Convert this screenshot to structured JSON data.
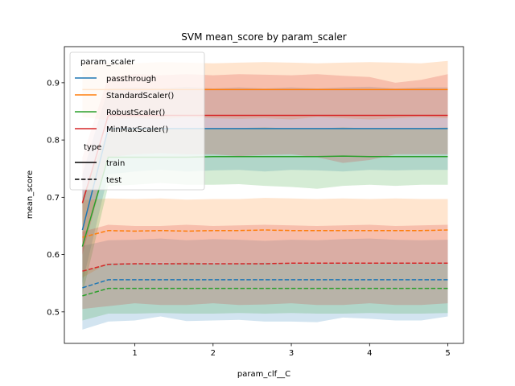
{
  "chart_data": {
    "type": "line",
    "title": "SVM mean_score by param_scaler",
    "xlabel": "param_clf__C",
    "ylabel": "mean_score",
    "xlim": [
      0.1,
      5.2
    ],
    "ylim": [
      0.445,
      0.963
    ],
    "xticks": [
      1,
      2,
      3,
      4,
      5
    ],
    "yticks": [
      0.5,
      0.6,
      0.7,
      0.8,
      0.9
    ],
    "ytick_labels": [
      "0.5",
      "0.6",
      "0.7",
      "0.8",
      "0.9"
    ],
    "xtick_labels": [
      "1",
      "2",
      "3",
      "4",
      "5"
    ],
    "x": [
      0.33,
      0.66,
      1.0,
      1.33,
      1.66,
      2.0,
      2.33,
      2.66,
      3.0,
      3.33,
      3.66,
      4.0,
      4.33,
      4.66,
      5.0
    ],
    "legend": {
      "position": "top-left",
      "hue_title": "param_scaler",
      "style_title": "type",
      "style_entries": [
        {
          "label": "train",
          "dash": "solid"
        },
        {
          "label": "test",
          "dash": "dashed"
        }
      ]
    },
    "series": [
      {
        "name": "passthrough",
        "color": "#1f77b4",
        "train": [
          0.643,
          0.82,
          0.82,
          0.82,
          0.82,
          0.82,
          0.82,
          0.82,
          0.82,
          0.82,
          0.82,
          0.82,
          0.82,
          0.82,
          0.82
        ],
        "train_lo": [
          0.55,
          0.74,
          0.745,
          0.748,
          0.745,
          0.747,
          0.748,
          0.745,
          0.748,
          0.747,
          0.745,
          0.748,
          0.747,
          0.748,
          0.748
        ],
        "train_hi": [
          0.74,
          0.89,
          0.892,
          0.89,
          0.893,
          0.89,
          0.892,
          0.89,
          0.892,
          0.89,
          0.892,
          0.893,
          0.89,
          0.892,
          0.892
        ],
        "test": [
          0.542,
          0.556,
          0.556,
          0.556,
          0.556,
          0.556,
          0.556,
          0.556,
          0.556,
          0.556,
          0.556,
          0.556,
          0.556,
          0.556,
          0.556
        ],
        "test_lo": [
          0.469,
          0.483,
          0.485,
          0.492,
          0.484,
          0.485,
          0.486,
          0.483,
          0.483,
          0.482,
          0.49,
          0.488,
          0.485,
          0.485,
          0.492
        ],
        "test_hi": [
          0.615,
          0.625,
          0.626,
          0.628,
          0.625,
          0.627,
          0.626,
          0.624,
          0.626,
          0.625,
          0.627,
          0.628,
          0.626,
          0.625,
          0.626
        ]
      },
      {
        "name": "StandardScaler()",
        "color": "#ff7f0e",
        "train": [
          0.888,
          0.888,
          0.888,
          0.888,
          0.888,
          0.888,
          0.888,
          0.888,
          0.888,
          0.888,
          0.888,
          0.888,
          0.888,
          0.888,
          0.888
        ],
        "train_lo": [
          0.84,
          0.835,
          0.838,
          0.836,
          0.84,
          0.838,
          0.837,
          0.838,
          0.836,
          0.84,
          0.838,
          0.836,
          0.838,
          0.84,
          0.838
        ],
        "train_hi": [
          0.935,
          0.935,
          0.934,
          0.936,
          0.935,
          0.934,
          0.935,
          0.936,
          0.935,
          0.934,
          0.935,
          0.936,
          0.935,
          0.934,
          0.938
        ],
        "test": [
          0.63,
          0.642,
          0.641,
          0.642,
          0.641,
          0.642,
          0.642,
          0.643,
          0.642,
          0.642,
          0.642,
          0.642,
          0.642,
          0.642,
          0.643
        ],
        "test_lo": [
          0.56,
          0.585,
          0.585,
          0.586,
          0.585,
          0.586,
          0.585,
          0.586,
          0.585,
          0.585,
          0.586,
          0.585,
          0.586,
          0.585,
          0.586
        ],
        "test_hi": [
          0.695,
          0.698,
          0.697,
          0.698,
          0.696,
          0.697,
          0.697,
          0.699,
          0.698,
          0.697,
          0.698,
          0.697,
          0.698,
          0.697,
          0.697
        ]
      },
      {
        "name": "RobustScaler()",
        "color": "#2ca02c",
        "train": [
          0.614,
          0.77,
          0.77,
          0.77,
          0.77,
          0.771,
          0.771,
          0.771,
          0.771,
          0.771,
          0.772,
          0.771,
          0.771,
          0.771,
          0.771
        ],
        "train_lo": [
          0.53,
          0.72,
          0.722,
          0.725,
          0.722,
          0.722,
          0.723,
          0.72,
          0.718,
          0.715,
          0.72,
          0.722,
          0.72,
          0.722,
          0.722
        ],
        "train_hi": [
          0.7,
          0.82,
          0.82,
          0.822,
          0.82,
          0.82,
          0.821,
          0.822,
          0.82,
          0.82,
          0.822,
          0.82,
          0.821,
          0.82,
          0.822
        ],
        "test": [
          0.528,
          0.541,
          0.541,
          0.541,
          0.541,
          0.541,
          0.541,
          0.541,
          0.541,
          0.541,
          0.541,
          0.541,
          0.541,
          0.541,
          0.541
        ],
        "test_lo": [
          0.485,
          0.497,
          0.497,
          0.498,
          0.497,
          0.497,
          0.498,
          0.497,
          0.498,
          0.497,
          0.497,
          0.498,
          0.497,
          0.497,
          0.498
        ],
        "test_hi": [
          0.57,
          0.585,
          0.585,
          0.585,
          0.586,
          0.585,
          0.585,
          0.586,
          0.585,
          0.585,
          0.586,
          0.585,
          0.586,
          0.585,
          0.586
        ]
      },
      {
        "name": "MinMaxScaler()",
        "color": "#d62728",
        "train": [
          0.69,
          0.843,
          0.843,
          0.843,
          0.843,
          0.843,
          0.843,
          0.843,
          0.843,
          0.843,
          0.843,
          0.843,
          0.843,
          0.843,
          0.843
        ],
        "train_lo": [
          0.6,
          0.77,
          0.775,
          0.777,
          0.775,
          0.775,
          0.772,
          0.774,
          0.775,
          0.77,
          0.76,
          0.765,
          0.775,
          0.775,
          0.775
        ],
        "train_hi": [
          0.77,
          0.91,
          0.915,
          0.913,
          0.915,
          0.913,
          0.915,
          0.914,
          0.913,
          0.915,
          0.912,
          0.91,
          0.9,
          0.905,
          0.915
        ],
        "test": [
          0.571,
          0.583,
          0.584,
          0.584,
          0.584,
          0.584,
          0.584,
          0.584,
          0.585,
          0.585,
          0.585,
          0.585,
          0.585,
          0.585,
          0.585
        ],
        "test_lo": [
          0.505,
          0.51,
          0.515,
          0.512,
          0.512,
          0.515,
          0.512,
          0.513,
          0.515,
          0.512,
          0.512,
          0.515,
          0.512,
          0.512,
          0.515
        ],
        "test_hi": [
          0.64,
          0.652,
          0.65,
          0.65,
          0.652,
          0.65,
          0.651,
          0.652,
          0.651,
          0.65,
          0.651,
          0.652,
          0.65,
          0.651,
          0.652
        ]
      }
    ]
  }
}
